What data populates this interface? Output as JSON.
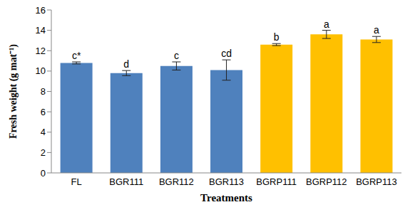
{
  "chart_data": {
    "type": "bar",
    "x_label": "Treatments",
    "y_label": "Fresh weight (g mat⁻¹)",
    "categories": [
      "FL",
      "BGR111",
      "BGR112",
      "BGR113",
      "BGRP111",
      "BGRP112",
      "BGRP113"
    ],
    "values": [
      10.8,
      9.8,
      10.5,
      10.1,
      12.6,
      13.6,
      13.1
    ],
    "error": [
      0.1,
      0.25,
      0.4,
      1.0,
      0.1,
      0.4,
      0.3
    ],
    "annotations": [
      "c*",
      "d",
      "c",
      "cd",
      "b",
      "a",
      "a"
    ],
    "colors": [
      "#4f81bd",
      "#4f81bd",
      "#4f81bd",
      "#4f81bd",
      "#ffc000",
      "#ffc000",
      "#ffc000"
    ],
    "ylim": [
      0,
      16
    ],
    "yticks": [
      0,
      2,
      4,
      6,
      8,
      10,
      12,
      14,
      16
    ],
    "grid": false
  }
}
